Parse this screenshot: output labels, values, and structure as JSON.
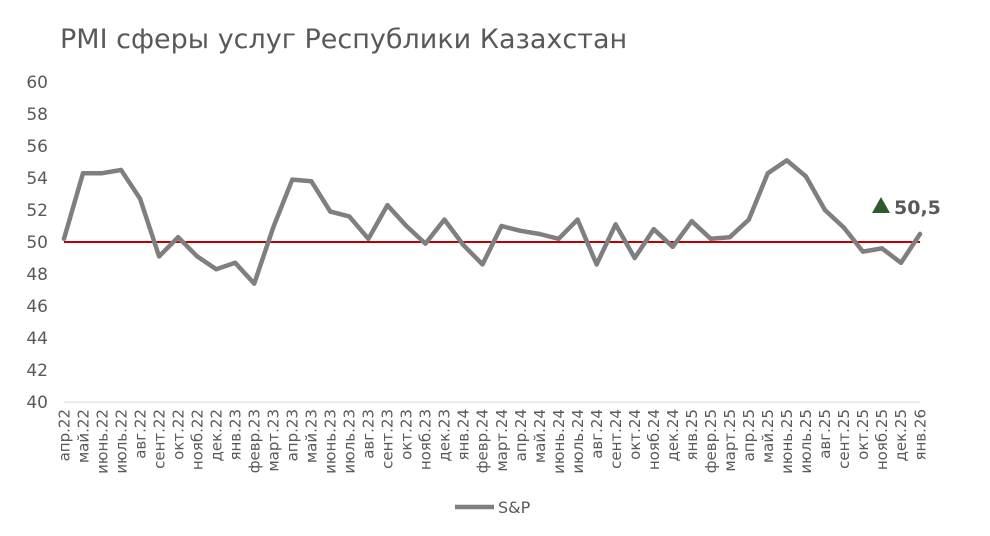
{
  "chart_data": {
    "type": "line",
    "title": "PMI сферы услуг Республики Казахстан",
    "categories": [
      "апр.22",
      "май.22",
      "июнь.22",
      "июль.22",
      "авг.22",
      "сент.22",
      "окт.22",
      "нояб.22",
      "дек.22",
      "янв.23",
      "февр.23",
      "март.23",
      "апр.23",
      "май.23",
      "июнь.23",
      "июль.23",
      "авг.23",
      "сент.23",
      "окт.23",
      "нояб.23",
      "дек.23",
      "янв.24",
      "февр.24",
      "март.24",
      "апр.24",
      "май.24",
      "июнь.24",
      "июль.24",
      "авг.24",
      "сент.24",
      "окт.24",
      "нояб.24",
      "дек.24",
      "янв.25",
      "февр.25",
      "март.25",
      "апр.25",
      "май.25",
      "июнь.25",
      "июль.25",
      "авг.25",
      "сент.25",
      "окт.25",
      "нояб.25",
      "дек.25",
      "янв.26"
    ],
    "series": [
      {
        "name": "S&P",
        "color": "#7f7f7f",
        "values": [
          50.2,
          54.3,
          54.3,
          54.5,
          52.7,
          49.1,
          50.3,
          49.1,
          48.3,
          48.7,
          47.4,
          50.9,
          53.9,
          53.8,
          51.9,
          51.6,
          50.2,
          52.3,
          51.0,
          49.9,
          51.4,
          49.8,
          48.6,
          51.0,
          50.7,
          50.5,
          50.2,
          51.4,
          48.6,
          51.1,
          49.0,
          50.8,
          49.7,
          51.3,
          50.2,
          50.3,
          51.4,
          54.3,
          55.1,
          54.1,
          52.0,
          50.9,
          49.4,
          49.6,
          48.7,
          50.5
        ]
      }
    ],
    "reference_line": {
      "value": 50,
      "color": "#c00000"
    },
    "last_label": "50,5",
    "marker_color": "#2e5a2e",
    "yticks": [
      "60",
      "58",
      "56",
      "54",
      "52",
      "50",
      "48",
      "46",
      "44",
      "42",
      "40"
    ],
    "ylim": [
      40,
      60
    ],
    "grid": false,
    "legend": {
      "position": "bottom",
      "label": "S&P"
    }
  }
}
